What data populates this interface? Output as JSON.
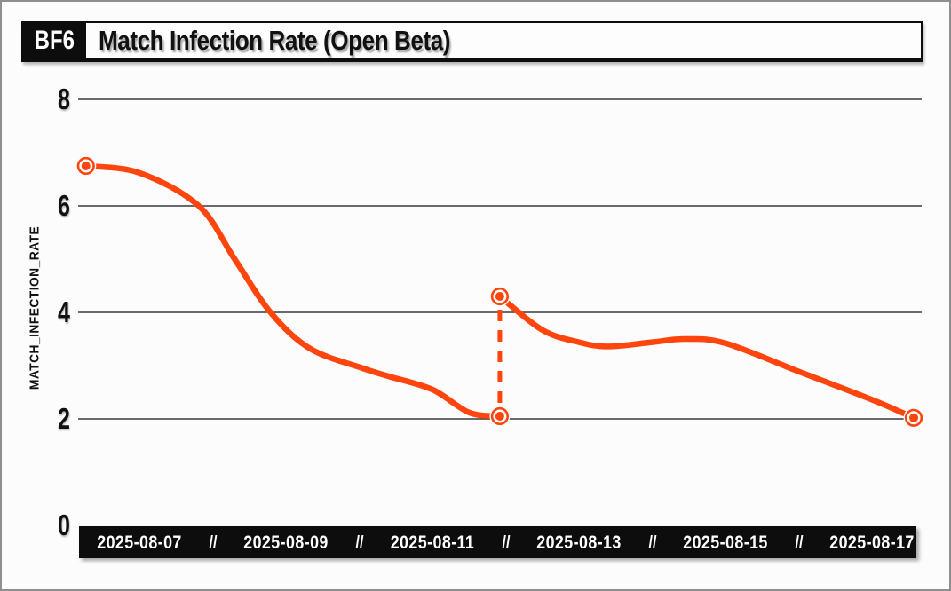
{
  "header": {
    "badge": "BF6",
    "title": "Match Infection Rate (Open Beta)"
  },
  "colors": {
    "background": "#fcfcfc",
    "frame_border": "#8f8f8f",
    "grid": "#3a3a3a",
    "axis_bar_bg": "#0d0d0d",
    "axis_bar_text": "#ffffff",
    "text": "#111111",
    "accent_orange": "#ff450e"
  },
  "chart_data": {
    "type": "line",
    "badge": "BF6",
    "title": "Match Infection Rate (Open Beta)",
    "xlabel": "",
    "ylabel": "MATCH_INFECTION_RATE",
    "ylim": [
      0,
      8
    ],
    "yticks": [
      0,
      2,
      4,
      6,
      8
    ],
    "grid": "horizontal",
    "legend": "none",
    "line_color": "#ff450e",
    "x_unit": "day index (0 = 2025-08-06)",
    "x_tick_separator": "//",
    "x_ticks": [
      {
        "label": "2025-08-07",
        "day": 1
      },
      {
        "label": "2025-08-09",
        "day": 3
      },
      {
        "label": "2025-08-11",
        "day": 5
      },
      {
        "label": "2025-08-13",
        "day": 7
      },
      {
        "label": "2025-08-15",
        "day": 9
      },
      {
        "label": "2025-08-17",
        "day": 11
      }
    ],
    "segments": [
      {
        "name": "before-drop",
        "points": [
          [
            0.27,
            6.75
          ],
          [
            1,
            6.62
          ],
          [
            1.81,
            6.0
          ],
          [
            2.3,
            5.0
          ],
          [
            2.79,
            4.0
          ],
          [
            3.33,
            3.32
          ],
          [
            4.05,
            2.95
          ],
          [
            4.4,
            2.8
          ],
          [
            5,
            2.55
          ],
          [
            5.5,
            2.12
          ],
          [
            5.92,
            2.05
          ]
        ]
      },
      {
        "name": "after-jump",
        "points": [
          [
            5.92,
            4.3
          ],
          [
            6.5,
            3.67
          ],
          [
            7,
            3.44
          ],
          [
            7.4,
            3.36
          ],
          [
            8,
            3.44
          ],
          [
            8.45,
            3.5
          ],
          [
            9,
            3.42
          ],
          [
            10,
            2.89
          ],
          [
            11,
            2.36
          ],
          [
            11.57,
            2.02
          ]
        ]
      }
    ],
    "discontinuity": {
      "day": 5.92,
      "from_value": 2.05,
      "to_value": 4.3,
      "style": "dashed-vertical"
    },
    "markers": [
      [
        0.27,
        6.75
      ],
      [
        5.92,
        2.05
      ],
      [
        5.92,
        4.3
      ],
      [
        11.57,
        2.02
      ]
    ]
  }
}
